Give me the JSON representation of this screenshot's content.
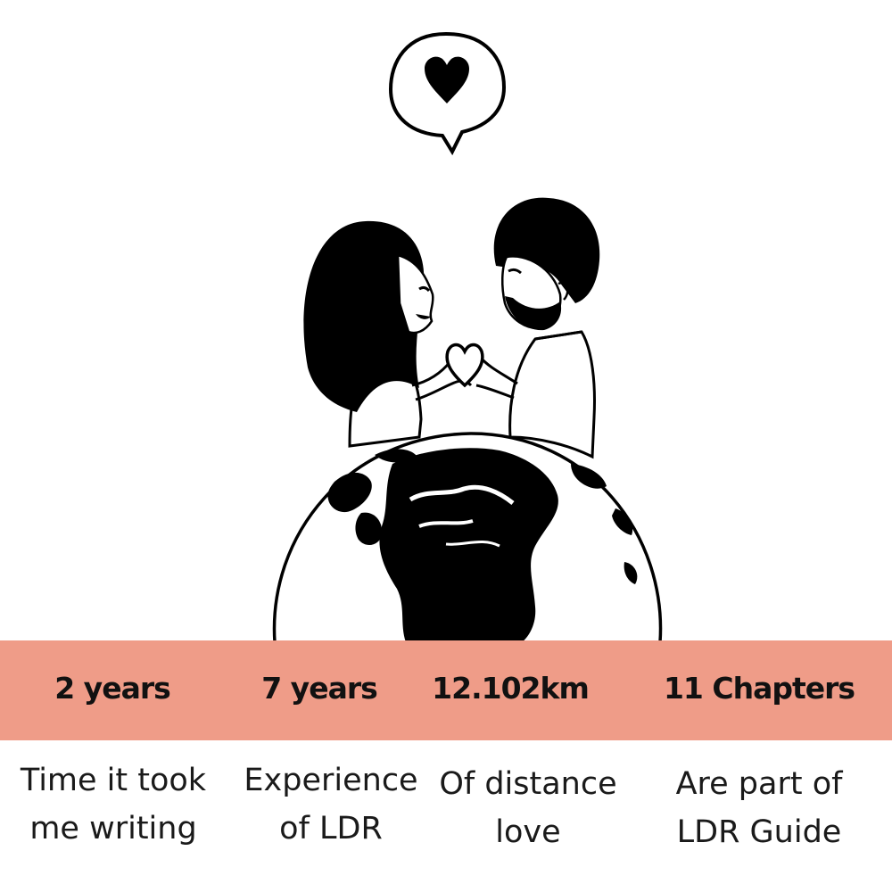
{
  "colors": {
    "band": "#ef9c88",
    "ink": "#000000",
    "text": "#1a1a1a",
    "background": "#ffffff"
  },
  "illustration": {
    "icons": [
      "speech-bubble-heart-icon",
      "couple-hand-heart-icon",
      "globe-icon"
    ]
  },
  "stats": [
    {
      "value": "2 years",
      "caption_line1": "Time it took",
      "caption_line2": "me writing"
    },
    {
      "value": "7 years",
      "caption_line1": "Experience",
      "caption_line2": "of LDR"
    },
    {
      "value": "12.102km",
      "caption_line1": "Of distance",
      "caption_line2": "love"
    },
    {
      "value": "11 Chapters",
      "caption_line1": "Are part of",
      "caption_line2": "LDR Guide"
    }
  ]
}
